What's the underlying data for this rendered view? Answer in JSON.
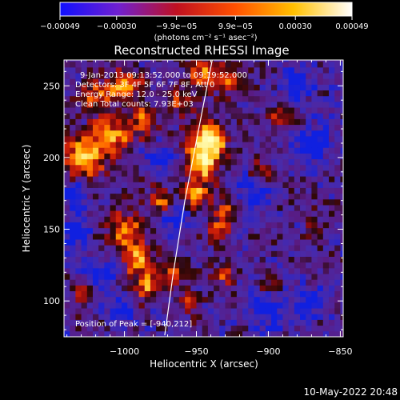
{
  "chart_data": {
    "type": "heatmap",
    "title": "Reconstructed RHESSI Image",
    "xlabel": "Heliocentric X (arcsec)",
    "ylabel": "Heliocentric Y (arcsec)",
    "xlim": [
      -1042,
      -848
    ],
    "ylim": [
      75,
      268
    ],
    "x_ticks": [
      {
        "value": -1000,
        "label": "−1000"
      },
      {
        "value": -950,
        "label": "−950"
      },
      {
        "value": -900,
        "label": "−900"
      },
      {
        "value": -850,
        "label": "−850"
      }
    ],
    "y_ticks": [
      {
        "value": 100,
        "label": "100"
      },
      {
        "value": 150,
        "label": "150"
      },
      {
        "value": 200,
        "label": "200"
      },
      {
        "value": 250,
        "label": "250"
      }
    ],
    "info_lines": [
      "9-Jan-2013 09:13:52.000 to 09:19:52.000",
      "Detectors: 3F 4F 5F 6F 7F 8F, Att 0",
      "Energy Range: 12.0 - 25.0 keV",
      "Clean     Total counts: 7.93E+03"
    ],
    "peak_label": "Position of Peak = [-940,212]",
    "peak_position": [
      -940,
      212
    ],
    "colorbar": {
      "label": "(photons cm⁻² s⁻¹ asec⁻²)",
      "vmin": -0.00049,
      "vmax": 0.00049,
      "ticks": [
        {
          "value": -0.00049,
          "label": "−0.00049"
        },
        {
          "value": -0.0003,
          "label": "−0.00030"
        },
        {
          "value": -9.9e-05,
          "label": "−9.9e−05"
        },
        {
          "value": 9.9e-05,
          "label": "9.9e−05"
        },
        {
          "value": 0.0003,
          "label": "0.00030"
        },
        {
          "value": 0.00049,
          "label": "0.00049"
        }
      ],
      "colors": [
        "#1010ff",
        "#7020d0",
        "#c01020",
        "#ff5000",
        "#ffc000",
        "#ffffff"
      ]
    },
    "limb_line": [
      [
        -972,
        76
      ],
      [
        -966,
        120
      ],
      [
        -958,
        170
      ],
      [
        -948,
        222
      ],
      [
        -939,
        268
      ]
    ],
    "hot_spots": [
      {
        "x": -1030,
        "y": 200,
        "v": 1.6,
        "r": 14
      },
      {
        "x": -1010,
        "y": 215,
        "v": 1.3,
        "r": 14
      },
      {
        "x": -1000,
        "y": 250,
        "v": 1.2,
        "r": 12
      },
      {
        "x": -1020,
        "y": 245,
        "v": 1.0,
        "r": 10
      },
      {
        "x": -985,
        "y": 225,
        "v": 1.0,
        "r": 10
      },
      {
        "x": -960,
        "y": 240,
        "v": 0.9,
        "r": 10
      },
      {
        "x": -942,
        "y": 212,
        "v": 2.2,
        "r": 12
      },
      {
        "x": -945,
        "y": 195,
        "v": 1.6,
        "r": 10
      },
      {
        "x": -950,
        "y": 175,
        "v": 1.4,
        "r": 9
      },
      {
        "x": -935,
        "y": 150,
        "v": 1.0,
        "r": 8
      },
      {
        "x": -930,
        "y": 165,
        "v": 1.0,
        "r": 8
      },
      {
        "x": -928,
        "y": 255,
        "v": 1.0,
        "r": 10
      },
      {
        "x": -945,
        "y": 260,
        "v": 1.1,
        "r": 9
      },
      {
        "x": -1000,
        "y": 150,
        "v": 1.2,
        "r": 12
      },
      {
        "x": -990,
        "y": 130,
        "v": 1.4,
        "r": 11
      },
      {
        "x": -985,
        "y": 110,
        "v": 1.3,
        "r": 10
      },
      {
        "x": -975,
        "y": 170,
        "v": 1.0,
        "r": 9
      },
      {
        "x": -965,
        "y": 118,
        "v": 0.9,
        "r": 8
      },
      {
        "x": -955,
        "y": 100,
        "v": 0.9,
        "r": 8
      },
      {
        "x": -930,
        "y": 120,
        "v": 0.9,
        "r": 8
      },
      {
        "x": -1030,
        "y": 110,
        "v": 0.8,
        "r": 9
      },
      {
        "x": -905,
        "y": 190,
        "v": 0.8,
        "r": 8
      },
      {
        "x": -890,
        "y": 230,
        "v": 0.8,
        "r": 9
      },
      {
        "x": -900,
        "y": 110,
        "v": 0.7,
        "r": 8
      },
      {
        "x": -870,
        "y": 150,
        "v": 0.6,
        "r": 7
      }
    ],
    "cold_spots": [
      {
        "x": -1020,
        "y": 120,
        "v": 1.0,
        "r": 12
      },
      {
        "x": -900,
        "y": 95,
        "v": 1.1,
        "r": 12
      },
      {
        "x": -870,
        "y": 100,
        "v": 0.9,
        "r": 10
      },
      {
        "x": -910,
        "y": 175,
        "v": 0.8,
        "r": 12
      },
      {
        "x": -870,
        "y": 210,
        "v": 0.8,
        "r": 14
      },
      {
        "x": -880,
        "y": 250,
        "v": 0.7,
        "r": 12
      },
      {
        "x": -965,
        "y": 155,
        "v": 0.7,
        "r": 10
      },
      {
        "x": -975,
        "y": 200,
        "v": 0.7,
        "r": 9
      },
      {
        "x": -1035,
        "y": 150,
        "v": 0.8,
        "r": 10
      },
      {
        "x": -1035,
        "y": 175,
        "v": 0.8,
        "r": 9
      },
      {
        "x": -1000,
        "y": 95,
        "v": 0.7,
        "r": 10
      }
    ]
  },
  "timestamp": "10-May-2022 20:48"
}
